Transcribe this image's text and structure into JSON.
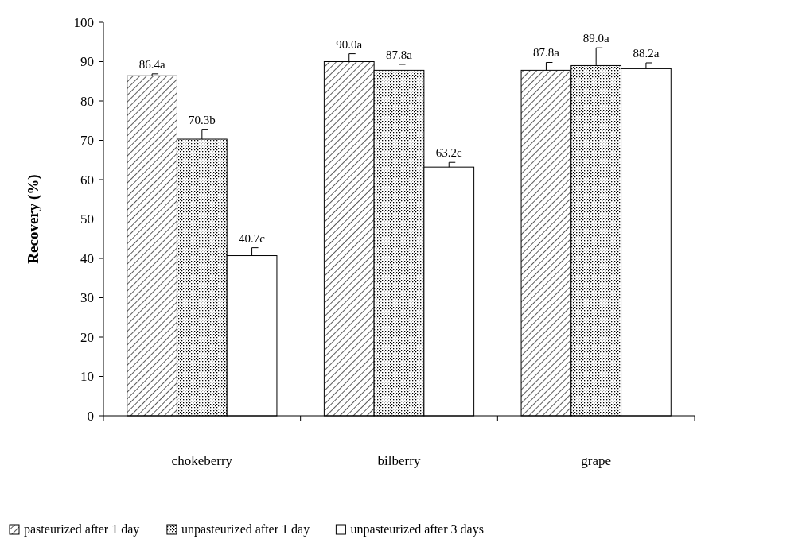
{
  "chart_data": {
    "type": "bar",
    "ylabel": "Recovery (%)",
    "categories": [
      "chokeberry",
      "bilberry",
      "grape"
    ],
    "series": [
      {
        "name": "pasteurized after 1 day",
        "color": "#000000",
        "values": [
          86.4,
          90.0,
          87.8
        ],
        "errors": [
          0.5,
          2,
          2
        ],
        "value_labels": [
          "86.4a",
          "90.0a",
          "87.8a"
        ]
      },
      {
        "name": "unpasteurized after 1 day",
        "color": "#000000",
        "values": [
          70.3,
          87.8,
          89.0
        ],
        "errors": [
          2.5,
          1.5,
          4.5
        ],
        "value_labels": [
          "70.3b",
          "87.8a",
          "89.0a"
        ]
      },
      {
        "name": "unpasteurized after 3 days",
        "color": "#ffffff",
        "values": [
          40.7,
          63.2,
          88.2
        ],
        "errors": [
          2,
          1.2,
          1.5
        ],
        "value_labels": [
          "40.7c",
          "63.2c",
          "88.2a"
        ]
      }
    ],
    "ylim": [
      0,
      100
    ],
    "yticks": [
      0,
      10,
      20,
      30,
      40,
      50,
      60,
      70,
      80,
      90,
      100
    ],
    "grid": false,
    "legend": "bottom"
  }
}
